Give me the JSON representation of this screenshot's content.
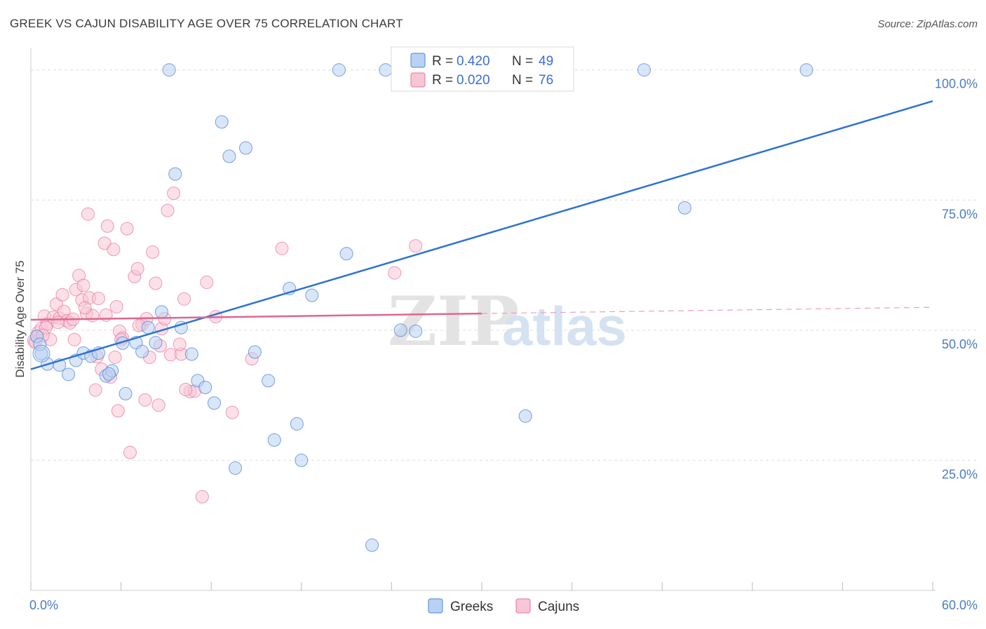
{
  "title": "GREEK VS CAJUN DISABILITY AGE OVER 75 CORRELATION CHART",
  "source": "Source: ZipAtlas.com",
  "watermark": {
    "zip": "ZIP",
    "atlas": "atlas"
  },
  "colors": {
    "greeks": "#4a86d8",
    "cajuns": "#e8739a",
    "greeks_fill": "#b9d2f3",
    "cajuns_fill": "#f7c6d5"
  },
  "legend": {
    "items": [
      {
        "r_label": "R = ",
        "r_value": "0.420",
        "n_label": "N = ",
        "n_value": "49"
      },
      {
        "r_label": "R = ",
        "r_value": "0.020",
        "n_label": "N = ",
        "n_value": "76"
      }
    ]
  },
  "bottom_legend": {
    "greeks": "Greeks",
    "cajuns": "Cajuns"
  },
  "chart_data": {
    "type": "scatter",
    "xlabel": "",
    "ylabel": "Disability Age Over 75",
    "xlim": [
      0,
      60
    ],
    "ylim": [
      0,
      104
    ],
    "x_tick_labels": [
      "0.0%",
      "60.0%"
    ],
    "y_ticks": [
      25,
      50,
      75,
      100
    ],
    "y_tick_labels": [
      "25.0%",
      "50.0%",
      "75.0%",
      "100.0%"
    ],
    "grid": true,
    "series": [
      {
        "name": "Greeks",
        "trend": {
          "x": [
            0,
            60
          ],
          "y": [
            42.5,
            94
          ]
        },
        "points": [
          [
            0.7,
            45.5
          ],
          [
            1.1,
            43.5
          ],
          [
            1.9,
            43.3
          ],
          [
            2.5,
            41.5
          ],
          [
            3.0,
            44.2
          ],
          [
            3.5,
            45.6
          ],
          [
            4.0,
            45.0
          ],
          [
            4.5,
            45.6
          ],
          [
            5.0,
            41.2
          ],
          [
            5.4,
            42.2
          ],
          [
            6.1,
            47.5
          ],
          [
            6.3,
            37.8
          ],
          [
            7.0,
            47.6
          ],
          [
            7.4,
            45.9
          ],
          [
            7.8,
            50.5
          ],
          [
            8.3,
            47.6
          ],
          [
            8.7,
            53.5
          ],
          [
            9.2,
            100
          ],
          [
            9.6,
            80.0
          ],
          [
            10.0,
            50.5
          ],
          [
            10.7,
            45.4
          ],
          [
            11.1,
            40.3
          ],
          [
            11.6,
            39.0
          ],
          [
            12.2,
            36.0
          ],
          [
            12.7,
            90.0
          ],
          [
            13.2,
            83.4
          ],
          [
            13.6,
            23.5
          ],
          [
            14.3,
            85.0
          ],
          [
            14.9,
            45.8
          ],
          [
            15.8,
            40.3
          ],
          [
            16.2,
            28.9
          ],
          [
            17.2,
            58.0
          ],
          [
            17.7,
            32.0
          ],
          [
            18.0,
            25.0
          ],
          [
            18.7,
            56.7
          ],
          [
            20.5,
            100
          ],
          [
            21.0,
            64.7
          ],
          [
            22.7,
            8.7
          ],
          [
            23.6,
            100
          ],
          [
            24.9,
            100
          ],
          [
            24.6,
            50.0
          ],
          [
            25.6,
            49.8
          ],
          [
            32.9,
            33.5
          ],
          [
            40.8,
            100
          ],
          [
            43.5,
            73.5
          ],
          [
            51.6,
            100
          ],
          [
            0.4,
            48.8
          ],
          [
            0.6,
            47.3
          ],
          [
            5.2,
            41.6
          ]
        ]
      },
      {
        "name": "Cajuns",
        "trend": {
          "x": [
            0,
            30
          ],
          "y": [
            52.0,
            53.2
          ]
        },
        "trend_dashed": {
          "x": [
            30,
            60
          ],
          "y": [
            53.2,
            54.4
          ]
        },
        "points": [
          [
            0.2,
            48.0
          ],
          [
            0.3,
            47.7
          ],
          [
            0.4,
            48.8
          ],
          [
            0.5,
            49.6
          ],
          [
            0.7,
            50.3
          ],
          [
            0.9,
            52.7
          ],
          [
            1.1,
            51.2
          ],
          [
            1.3,
            48.2
          ],
          [
            1.5,
            52.5
          ],
          [
            1.7,
            55.0
          ],
          [
            1.9,
            52.3
          ],
          [
            2.1,
            56.8
          ],
          [
            2.2,
            53.6
          ],
          [
            2.4,
            51.8
          ],
          [
            2.6,
            51.4
          ],
          [
            2.8,
            52.1
          ],
          [
            3.0,
            57.8
          ],
          [
            3.2,
            60.5
          ],
          [
            3.4,
            55.8
          ],
          [
            3.5,
            58.6
          ],
          [
            3.7,
            53.2
          ],
          [
            3.8,
            72.3
          ],
          [
            3.9,
            56.2
          ],
          [
            4.1,
            52.8
          ],
          [
            4.3,
            38.5
          ],
          [
            4.5,
            56.1
          ],
          [
            4.7,
            42.5
          ],
          [
            4.9,
            66.7
          ],
          [
            5.0,
            52.9
          ],
          [
            5.1,
            70.0
          ],
          [
            5.3,
            41.0
          ],
          [
            5.5,
            65.5
          ],
          [
            5.6,
            44.8
          ],
          [
            5.8,
            34.5
          ],
          [
            5.9,
            49.8
          ],
          [
            6.1,
            48.5
          ],
          [
            6.4,
            69.5
          ],
          [
            6.6,
            26.5
          ],
          [
            6.9,
            60.3
          ],
          [
            7.1,
            61.8
          ],
          [
            7.4,
            51.1
          ],
          [
            7.6,
            36.6
          ],
          [
            7.9,
            44.8
          ],
          [
            8.1,
            65.0
          ],
          [
            8.3,
            59.0
          ],
          [
            8.5,
            35.6
          ],
          [
            8.7,
            50.3
          ],
          [
            8.9,
            52.2
          ],
          [
            9.1,
            73.0
          ],
          [
            9.3,
            45.3
          ],
          [
            9.5,
            76.3
          ],
          [
            10.0,
            45.4
          ],
          [
            10.2,
            56.0
          ],
          [
            10.6,
            38.2
          ],
          [
            10.9,
            38.3
          ],
          [
            11.4,
            18.0
          ],
          [
            11.7,
            59.2
          ],
          [
            12.3,
            52.6
          ],
          [
            13.4,
            34.2
          ],
          [
            14.7,
            44.5
          ],
          [
            16.7,
            65.7
          ],
          [
            24.2,
            61.0
          ],
          [
            25.6,
            66.2
          ],
          [
            1.0,
            50.5
          ],
          [
            2.9,
            48.2
          ],
          [
            4.4,
            44.9
          ],
          [
            6.0,
            48.2
          ],
          [
            7.7,
            52.2
          ],
          [
            9.9,
            47.3
          ],
          [
            3.6,
            54.3
          ],
          [
            1.8,
            51.5
          ],
          [
            0.8,
            49.0
          ],
          [
            5.7,
            54.5
          ],
          [
            7.2,
            50.9
          ],
          [
            8.6,
            47.0
          ],
          [
            10.3,
            38.6
          ]
        ]
      }
    ]
  }
}
